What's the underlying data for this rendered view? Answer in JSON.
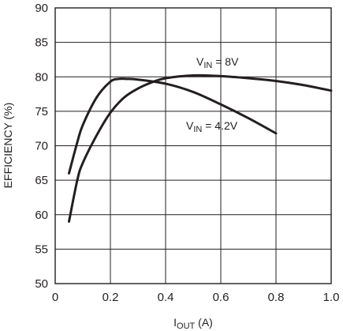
{
  "chart_data": {
    "type": "line",
    "title": "",
    "xlabel": {
      "main": "I",
      "sub": "OUT",
      "unit": " (A)"
    },
    "ylabel": "EFFICIENCY (%)",
    "xlim": [
      0,
      1.0
    ],
    "ylim": [
      50,
      90
    ],
    "x_ticks": [
      "0",
      "0.2",
      "0.4",
      "0.6",
      "0.8",
      "1.0"
    ],
    "y_ticks": [
      "50",
      "55",
      "60",
      "65",
      "70",
      "75",
      "80",
      "85",
      "90"
    ],
    "grid": true,
    "series": [
      {
        "name": "VIN = 8V",
        "label": {
          "main": "V",
          "sub": "IN",
          "rest": " = 8V"
        },
        "x": [
          0.05,
          0.08,
          0.1,
          0.15,
          0.2,
          0.25,
          0.3,
          0.35,
          0.4,
          0.5,
          0.6,
          0.7,
          0.8,
          0.9,
          1.0
        ],
        "y": [
          59.0,
          65.0,
          67.5,
          71.5,
          74.8,
          77.0,
          78.3,
          79.2,
          79.8,
          80.2,
          80.1,
          79.8,
          79.4,
          78.8,
          78.0
        ]
      },
      {
        "name": "VIN = 4.2V",
        "label": {
          "main": "V",
          "sub": "IN",
          "rest": " = 4.2V"
        },
        "x": [
          0.05,
          0.08,
          0.1,
          0.15,
          0.2,
          0.23,
          0.26,
          0.3,
          0.4,
          0.5,
          0.6,
          0.7,
          0.8
        ],
        "y": [
          66.0,
          70.5,
          73.0,
          77.0,
          79.3,
          79.7,
          79.7,
          79.6,
          79.0,
          77.8,
          76.0,
          74.0,
          71.8
        ]
      }
    ]
  }
}
